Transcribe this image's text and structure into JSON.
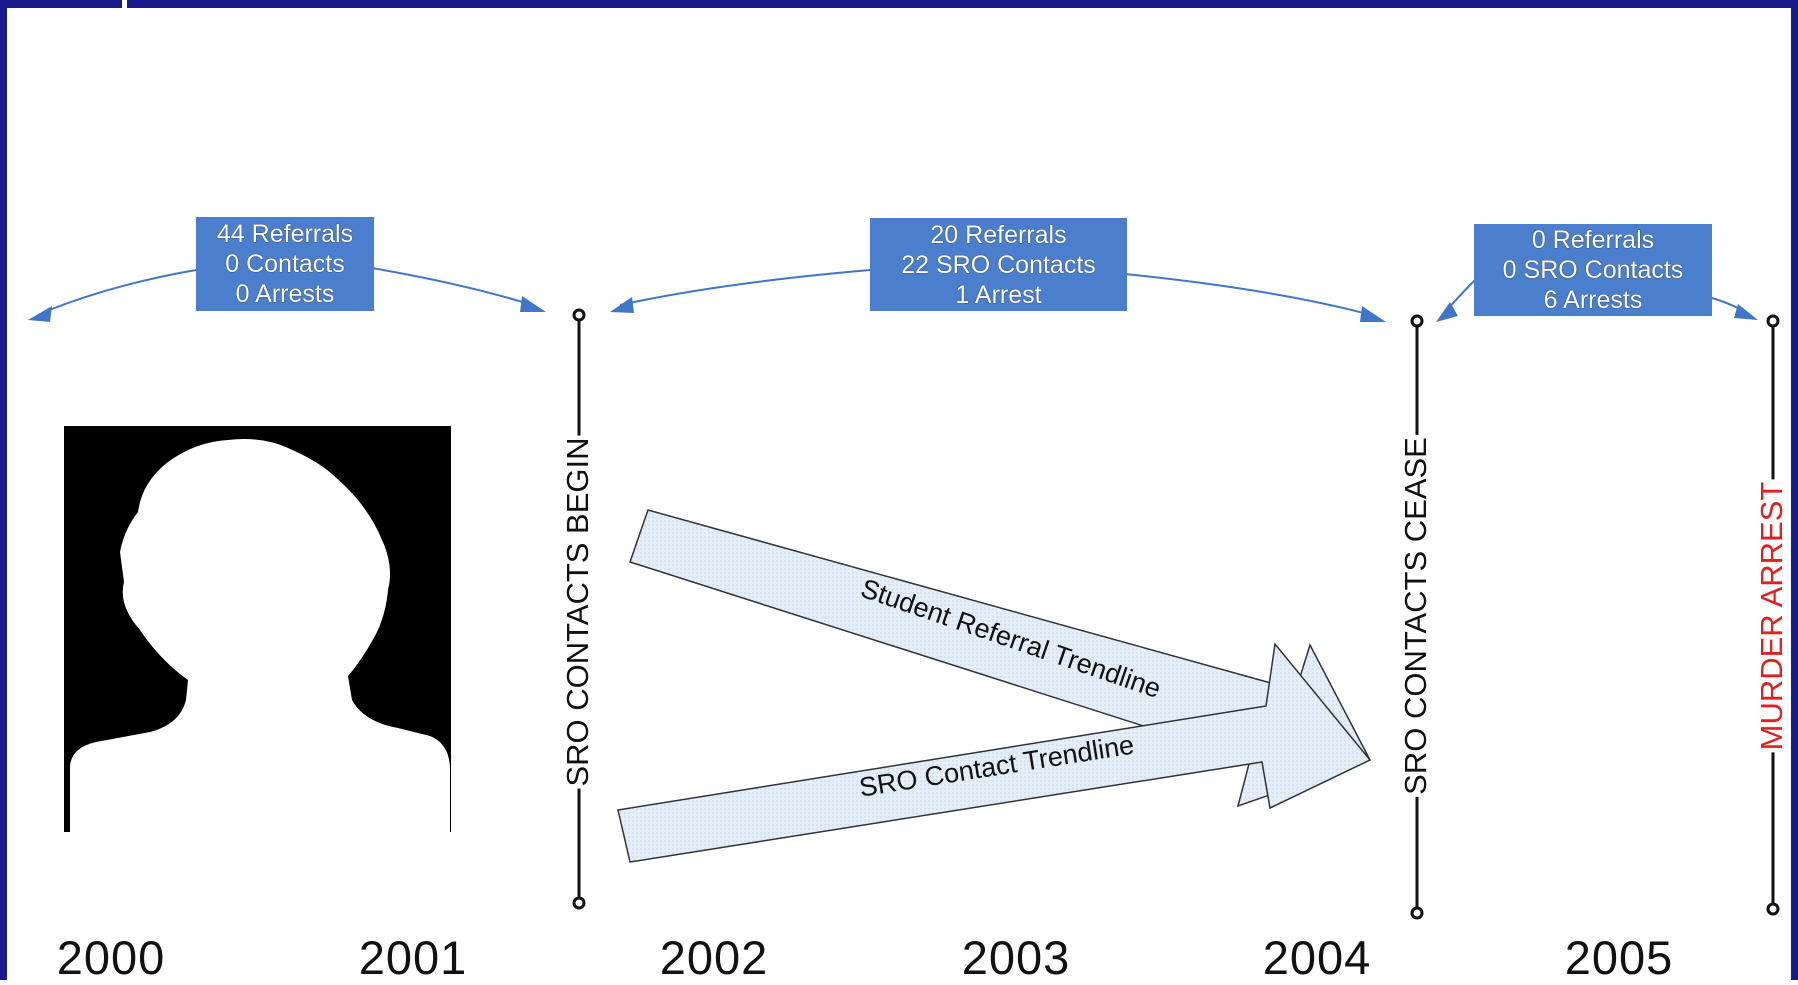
{
  "periods": [
    {
      "referrals": "44 Referrals",
      "contacts": "0 Contacts",
      "arrests": "0 Arrests"
    },
    {
      "referrals": "20 Referrals",
      "contacts": "22 SRO Contacts",
      "arrests": "1 Arrest"
    },
    {
      "referrals": "0 Referrals",
      "contacts": "0 SRO Contacts",
      "arrests": "6 Arrests"
    }
  ],
  "milestones": {
    "contacts_begin": "SRO CONTACTS BEGIN",
    "contacts_cease": "SRO CONTACTS CEASE",
    "murder_arrest": "MURDER ARREST"
  },
  "trendlines": {
    "student_referral": "Student Referral Trendline",
    "sro_contact": "SRO Contact Trendline"
  },
  "years": [
    "2000",
    "2001",
    "2002",
    "2003",
    "2004",
    "2005"
  ],
  "colors": {
    "frame": "#1a1a8c",
    "box": "#4b7fcd",
    "arrow_fill": "#e4eef9",
    "murder": "#e02020"
  },
  "icons": {
    "person": "person-silhouette-icon"
  }
}
